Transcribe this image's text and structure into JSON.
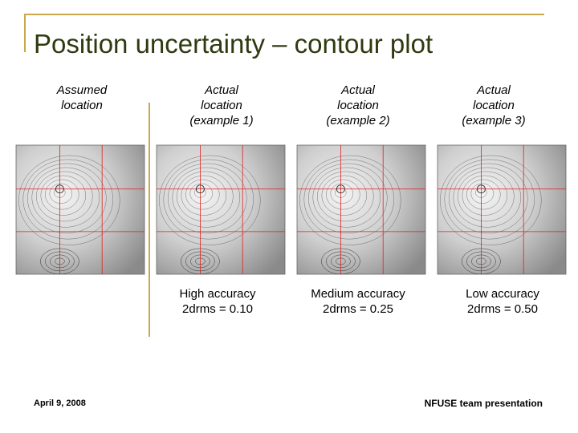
{
  "header": {
    "title": "Position uncertainty – contour plot"
  },
  "columns": [
    {
      "label": [
        "Assumed",
        "location"
      ],
      "caption": []
    },
    {
      "label": [
        "Actual",
        "location",
        "(example 1)"
      ],
      "caption": [
        "High accuracy",
        "2drms = 0.10"
      ]
    },
    {
      "label": [
        "Actual",
        "location",
        "(example 2)"
      ],
      "caption": [
        "Medium accuracy",
        "2drms = 0.25"
      ]
    },
    {
      "label": [
        "Actual",
        "location",
        "(example 3)"
      ],
      "caption": [
        "Low accuracy",
        "2drms = 0.50"
      ]
    }
  ],
  "footer": {
    "date": "April 9, 2008",
    "text": "NFUSE team presentation"
  }
}
